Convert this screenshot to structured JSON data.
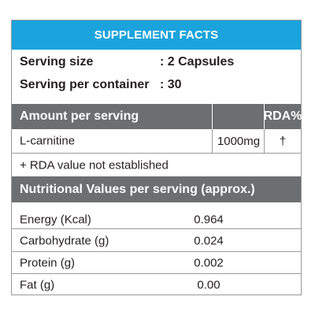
{
  "header": {
    "title": "SUPPLEMENT FACTS"
  },
  "serving": {
    "size_label": "Serving size",
    "size_value": ": 2 Capsules",
    "per_container_label": "Serving per container",
    "per_container_value": ": 30"
  },
  "amount_header": {
    "label": "Amount per serving",
    "rda_label": "RDA%"
  },
  "ingredients": [
    {
      "name": "L-carnitine",
      "amount": "1000mg",
      "rda": "†"
    }
  ],
  "footnote": "+ RDA value not established",
  "nutrition_header": {
    "label": "Nutritional Values per serving (approx.)"
  },
  "nutrition": [
    {
      "name": "Energy (Kcal)",
      "value": "0.964"
    },
    {
      "name": "Carbohydrate (g)",
      "value": "0.024"
    },
    {
      "name": "Protein (g)",
      "value": "0.002"
    },
    {
      "name": "Fat (g)",
      "value": "0.00"
    }
  ]
}
